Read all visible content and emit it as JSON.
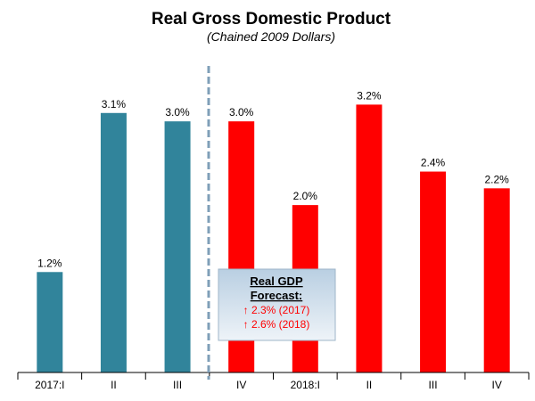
{
  "chart_data": {
    "type": "bar",
    "title": "Real Gross Domestic Product",
    "subtitle": "(Chained 2009 Dollars)",
    "xlabel": "",
    "ylabel": "",
    "categories": [
      "2017:I",
      "II",
      "III",
      "IV",
      "2018:I",
      "II",
      "III",
      "IV"
    ],
    "values": [
      1.2,
      3.1,
      3.0,
      3.0,
      2.0,
      3.2,
      2.4,
      2.2
    ],
    "value_labels": [
      "1.2%",
      "3.1%",
      "3.0%",
      "3.0%",
      "2.0%",
      "3.2%",
      "2.4%",
      "2.2%"
    ],
    "bar_types": [
      "actual",
      "actual",
      "actual",
      "forecast",
      "forecast",
      "forecast",
      "forecast",
      "forecast"
    ],
    "ylim": [
      0,
      3.3
    ],
    "grid": false,
    "legend": "none",
    "colors": {
      "actual": "#31849b",
      "forecast": "#ff0000",
      "divider": "#7f9fb8"
    },
    "divider_after_index": 2,
    "annotation": {
      "title_line1": "Real GDP",
      "title_line2": "Forecast:",
      "lines": [
        "↑ 2.3% (2017)",
        "↑ 2.6% (2018)"
      ],
      "text_color": "#ff0000"
    }
  }
}
